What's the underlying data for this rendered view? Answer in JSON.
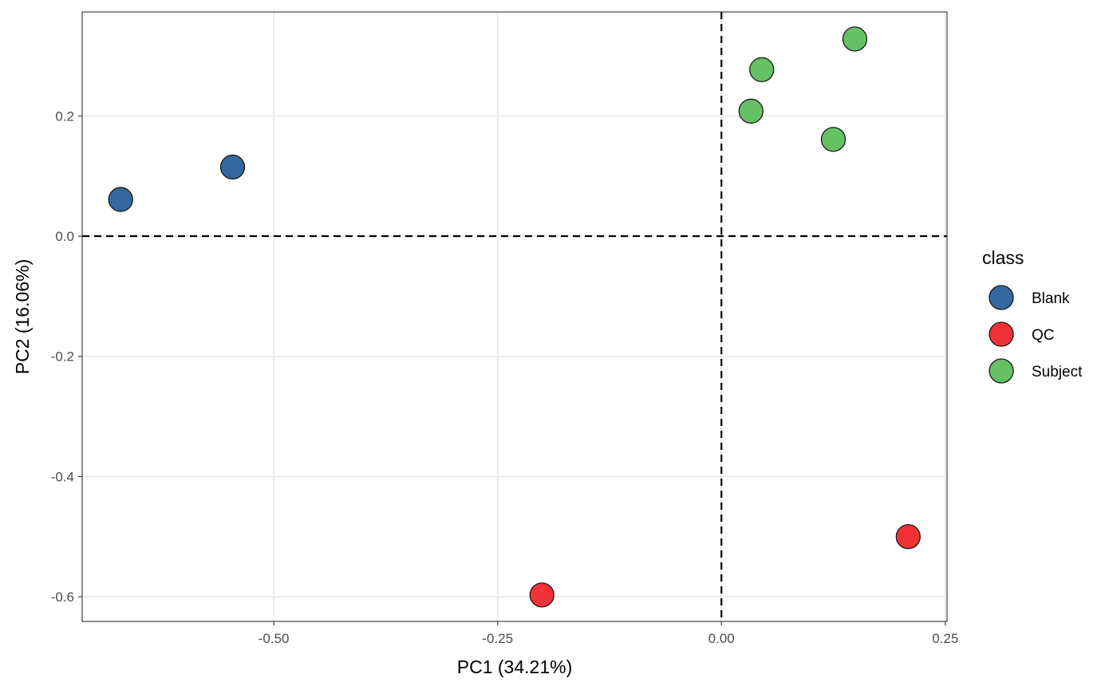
{
  "chart_data": {
    "type": "scatter",
    "title": "",
    "xlabel": "PC1 (34.21%)",
    "ylabel": "PC2 (16.06%)",
    "xlim": [
      -0.714,
      0.252
    ],
    "ylim": [
      -0.641,
      0.373
    ],
    "x_ticks": [
      -0.5,
      -0.25,
      0.0,
      0.25
    ],
    "x_tick_labels": [
      "-0.50",
      "-0.25",
      "0.00",
      "0.25"
    ],
    "y_ticks": [
      0.2,
      0.0,
      -0.2,
      -0.4,
      -0.6
    ],
    "y_tick_labels": [
      "0.2",
      "0.0",
      "-0.2",
      "-0.4",
      "-0.6"
    ],
    "grid": true,
    "reference_lines": {
      "x": 0,
      "y": 0,
      "style": "dashed"
    },
    "legend": {
      "title": "class",
      "placement": "right"
    },
    "series": [
      {
        "name": "Blank",
        "color": "#33689E",
        "points": [
          [
            -0.671,
            0.061
          ],
          [
            -0.546,
            0.115
          ]
        ]
      },
      {
        "name": "QC",
        "color": "#F03236",
        "points": [
          [
            -0.2005,
            -0.597
          ],
          [
            0.2086,
            -0.5
          ]
        ]
      },
      {
        "name": "Subject",
        "color": "#66C164",
        "points": [
          [
            0.149,
            0.328
          ],
          [
            0.045,
            0.277
          ],
          [
            0.033,
            0.208
          ],
          [
            0.125,
            0.161
          ]
        ]
      }
    ]
  }
}
